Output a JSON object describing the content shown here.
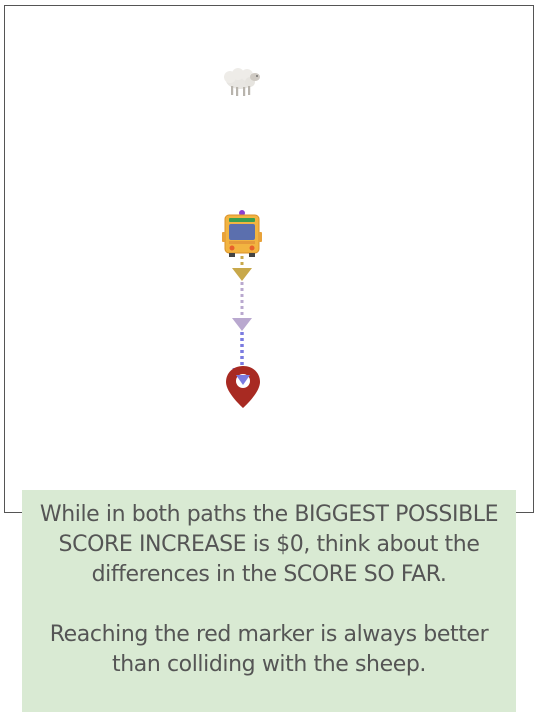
{
  "game": {
    "entities": [
      {
        "name": "sheep",
        "icon": "sheep-icon"
      },
      {
        "name": "cart",
        "icon": "trolley-cart-icon"
      },
      {
        "name": "goal",
        "icon": "red-map-marker-icon"
      }
    ],
    "path_colors": [
      "#c8a84a",
      "#b9a8cf",
      "#7b7be0"
    ],
    "marker_color": "#a82a22"
  },
  "hint": {
    "paragraph1": "While in both paths the BIGGEST POSSIBLE SCORE INCREASE is $0, think about the differences in the SCORE SO FAR.",
    "paragraph2": "Reaching the red marker is always better than colliding with the sheep.",
    "background": "#d9ead3"
  }
}
